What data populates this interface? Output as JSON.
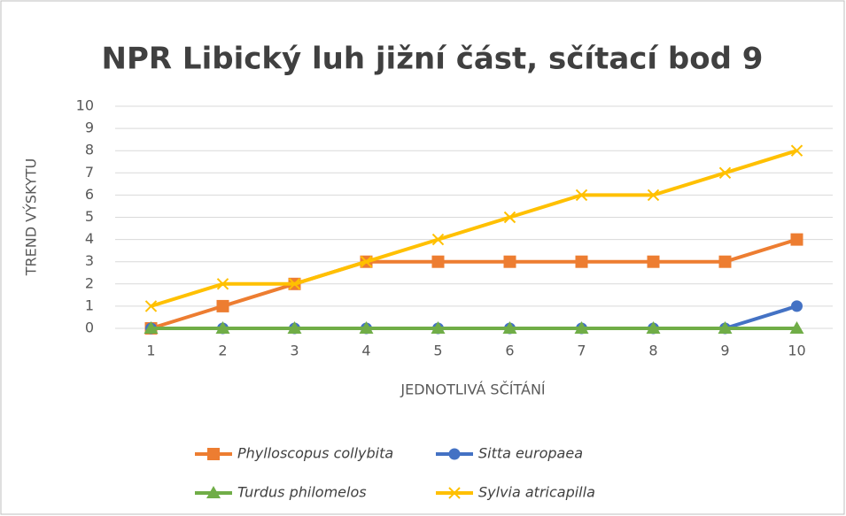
{
  "chart_data": {
    "type": "line",
    "title": "NPR Libický luh jižní část, sčítací bod 9",
    "x_label": "JEDNOTLIVÁ SČÍTÁNÍ",
    "y_label": "TREND VÝSKYTU",
    "categories": [
      "1",
      "2",
      "3",
      "4",
      "5",
      "6",
      "7",
      "8",
      "9",
      "10"
    ],
    "series": [
      {
        "name": "Phylloscopus collybita",
        "color": "#ED7D31",
        "marker": "square",
        "values": [
          0,
          1,
          2,
          3,
          3,
          3,
          3,
          3,
          3,
          4
        ]
      },
      {
        "name": "Sitta europaea",
        "color": "#4472C4",
        "marker": "circle",
        "values": [
          0,
          0,
          0,
          0,
          0,
          0,
          0,
          0,
          0,
          1
        ]
      },
      {
        "name": "Turdus philomelos",
        "color": "#70AD47",
        "marker": "triangle",
        "values": [
          0,
          0,
          0,
          0,
          0,
          0,
          0,
          0,
          0,
          0
        ]
      },
      {
        "name": "Sylvia atricapilla",
        "color": "#FFC000",
        "marker": "x",
        "values": [
          1,
          2,
          2,
          3,
          4,
          5,
          6,
          6,
          7,
          8
        ]
      }
    ],
    "ylim": [
      0,
      10
    ],
    "yticks": [
      0,
      1,
      2,
      3,
      4,
      5,
      6,
      7,
      8,
      9,
      10
    ],
    "grid": true,
    "legend": "bottom"
  }
}
